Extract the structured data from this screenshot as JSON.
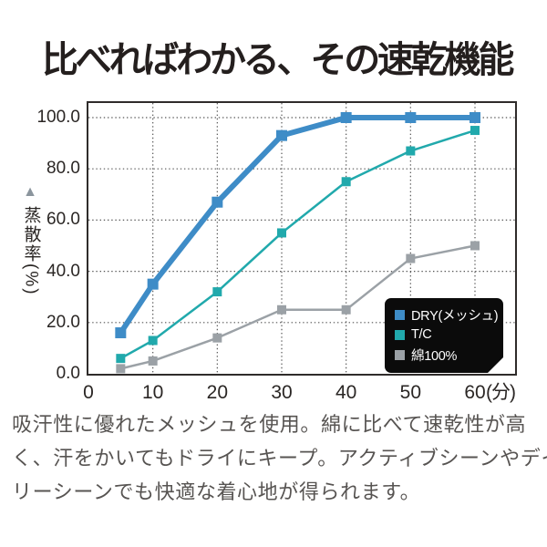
{
  "title": "比べればわかる、その速乾機能",
  "chart_data": {
    "type": "line",
    "x": [
      5,
      10,
      20,
      30,
      40,
      50,
      60
    ],
    "series": [
      {
        "name": "DRY(メッシュ)",
        "color": "#3e8cc7",
        "values": [
          16,
          35,
          67,
          93,
          100,
          100,
          100
        ]
      },
      {
        "name": "T/C",
        "color": "#21a9ac",
        "values": [
          6,
          13,
          32,
          55,
          75,
          87,
          95
        ]
      },
      {
        "name": "綿100%",
        "color": "#9ba1a6",
        "values": [
          2,
          5,
          14,
          25,
          25,
          45,
          50
        ]
      }
    ],
    "ylabel": "蒸散率(%)",
    "ylabel_marker": "▲",
    "x_unit": "(分)",
    "xlabel": "",
    "xtick_values": [
      0,
      10,
      20,
      30,
      40,
      50,
      60
    ],
    "xtick_labels": [
      "0",
      "10",
      "20",
      "30",
      "40",
      "50",
      "60"
    ],
    "ytick_values": [
      100,
      80,
      60,
      40,
      20,
      0
    ],
    "ytick_labels": [
      "100.0",
      "80.0",
      "60.0",
      "40.0",
      "20.0",
      "0.0"
    ],
    "x_gridlines": [
      10,
      20,
      30,
      40,
      50,
      60
    ],
    "y_gridlines": [
      20,
      40,
      60,
      80,
      100
    ],
    "xlim": [
      0,
      66.2
    ],
    "ylim": [
      0,
      105.7
    ],
    "grid": "dotted",
    "grid_color": "#565656",
    "border_color": "#2f2c2b",
    "legend_position": "bottom-right-inside",
    "legend_bg": "#0b0b0b"
  },
  "legend": {
    "items": [
      {
        "label": "DRY(メッシュ)",
        "color": "#3e8cc7"
      },
      {
        "label": "T/C",
        "color": "#21a9ac"
      },
      {
        "label": "綿100%",
        "color": "#9ba1a6"
      }
    ]
  },
  "description": {
    "lines": [
      "吸汗性に優れたメッシュを使用。綿に比べて速乾性が高",
      "く、汗をかいてもドライにキープ。アクティブシーンやデイ",
      "リーシーンでも快適な着心地が得られます。"
    ]
  }
}
